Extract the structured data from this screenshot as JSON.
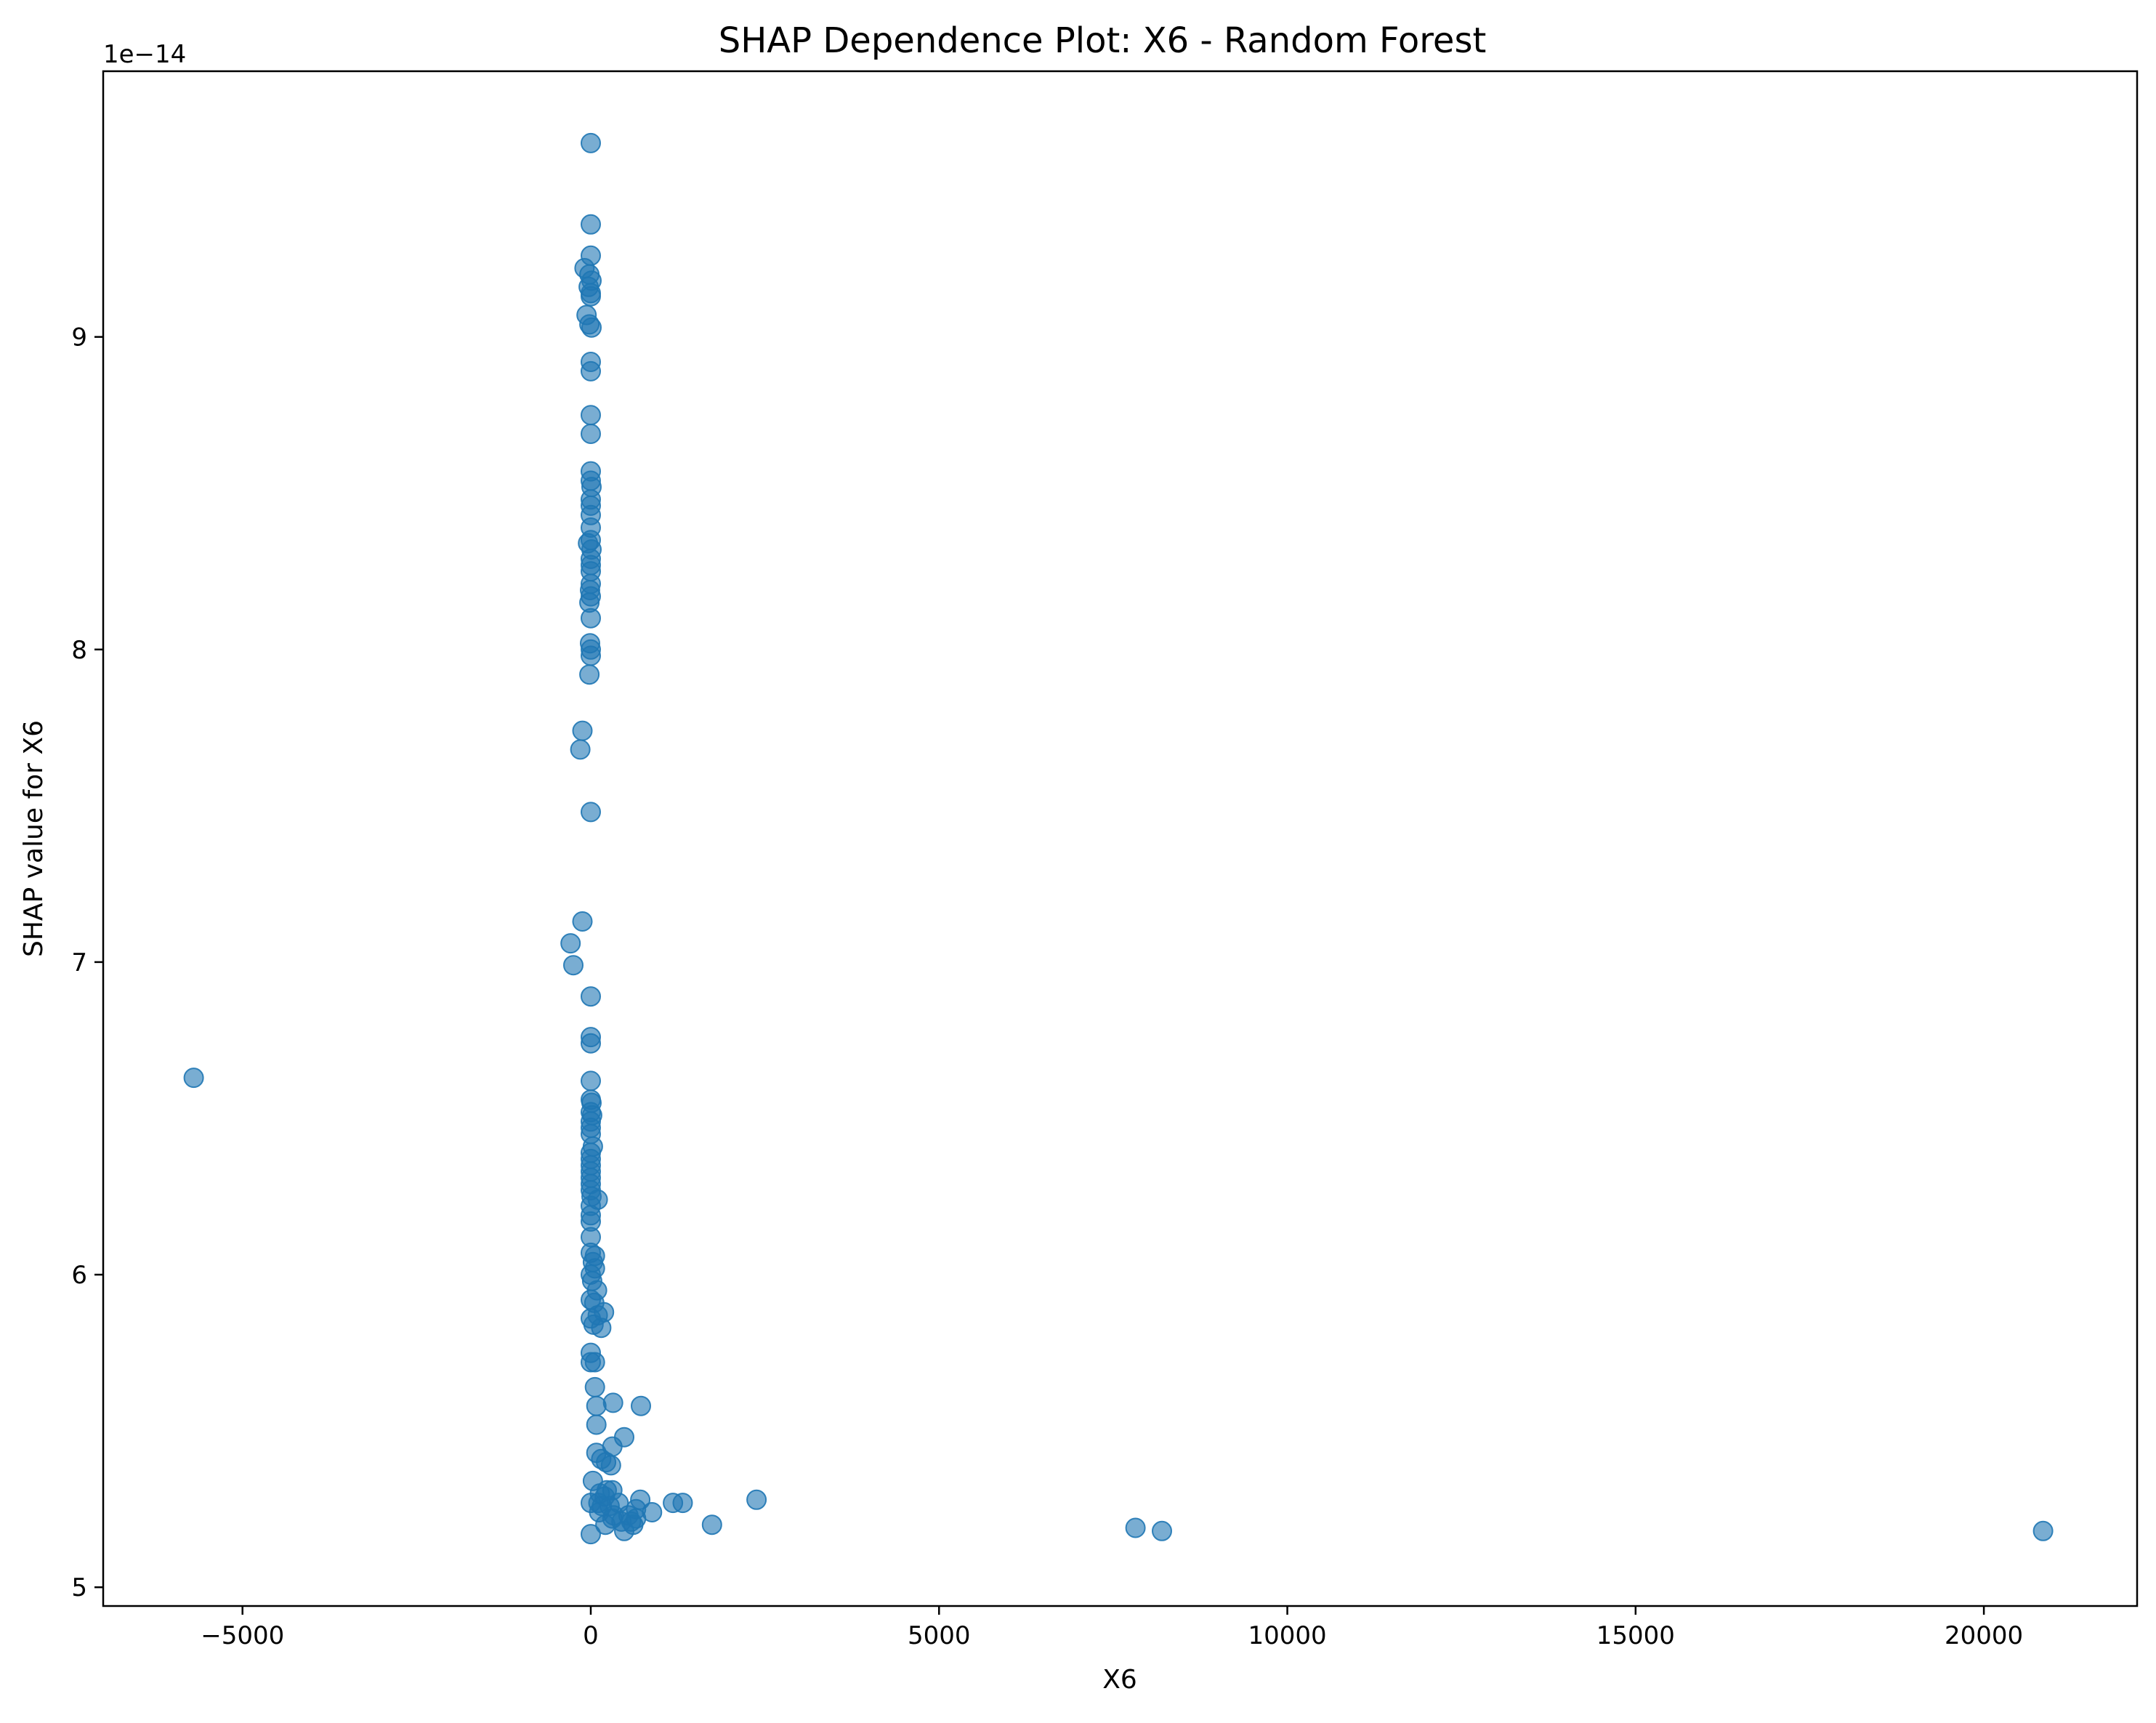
{
  "chart_data": {
    "type": "scatter",
    "title": "SHAP Dependence Plot: X6 - Random Forest",
    "xlabel": "X6",
    "ylabel": "SHAP value for X6",
    "y_offset_label": "1e−14",
    "xlim": [
      -7000,
      22200
    ],
    "ylim": [
      4.94,
      9.85
    ],
    "grid": false,
    "legend": "none",
    "marker_color": "#1f77b4",
    "marker_alpha": 0.6,
    "x_ticks": [
      {
        "value": -5000,
        "label": "−5000"
      },
      {
        "value": 0,
        "label": "0"
      },
      {
        "value": 5000,
        "label": "5000"
      },
      {
        "value": 10000,
        "label": "10000"
      },
      {
        "value": 15000,
        "label": "15000"
      },
      {
        "value": 20000,
        "label": "20000"
      }
    ],
    "y_ticks": [
      {
        "value": 5,
        "label": "5"
      },
      {
        "value": 6,
        "label": "6"
      },
      {
        "value": 7,
        "label": "7"
      },
      {
        "value": 8,
        "label": "8"
      },
      {
        "value": 9,
        "label": "9"
      }
    ],
    "points": [
      {
        "x": 0,
        "y": 9.62
      },
      {
        "x": 0,
        "y": 9.36
      },
      {
        "x": 0,
        "y": 9.26
      },
      {
        "x": -90,
        "y": 9.22
      },
      {
        "x": -20,
        "y": 9.2
      },
      {
        "x": 10,
        "y": 9.18
      },
      {
        "x": -30,
        "y": 9.16
      },
      {
        "x": 0,
        "y": 9.14
      },
      {
        "x": 0,
        "y": 9.13
      },
      {
        "x": -60,
        "y": 9.07
      },
      {
        "x": -20,
        "y": 9.04
      },
      {
        "x": 10,
        "y": 9.03
      },
      {
        "x": 0,
        "y": 8.92
      },
      {
        "x": 0,
        "y": 8.89
      },
      {
        "x": 0,
        "y": 8.75
      },
      {
        "x": 0,
        "y": 8.69
      },
      {
        "x": 0,
        "y": 8.57
      },
      {
        "x": 0,
        "y": 8.54
      },
      {
        "x": 10,
        "y": 8.52
      },
      {
        "x": 0,
        "y": 8.48
      },
      {
        "x": 0,
        "y": 8.46
      },
      {
        "x": 0,
        "y": 8.43
      },
      {
        "x": 0,
        "y": 8.39
      },
      {
        "x": 0,
        "y": 8.35
      },
      {
        "x": -40,
        "y": 8.34
      },
      {
        "x": 10,
        "y": 8.32
      },
      {
        "x": 0,
        "y": 8.29
      },
      {
        "x": 0,
        "y": 8.27
      },
      {
        "x": 0,
        "y": 8.25
      },
      {
        "x": 0,
        "y": 8.21
      },
      {
        "x": -10,
        "y": 8.19
      },
      {
        "x": 0,
        "y": 8.17
      },
      {
        "x": -20,
        "y": 8.15
      },
      {
        "x": 0,
        "y": 8.1
      },
      {
        "x": -10,
        "y": 8.02
      },
      {
        "x": 0,
        "y": 8.0
      },
      {
        "x": 0,
        "y": 7.98
      },
      {
        "x": -20,
        "y": 7.92
      },
      {
        "x": -120,
        "y": 7.74
      },
      {
        "x": -150,
        "y": 7.68
      },
      {
        "x": 0,
        "y": 7.48
      },
      {
        "x": -120,
        "y": 7.13
      },
      {
        "x": -290,
        "y": 7.06
      },
      {
        "x": -250,
        "y": 6.99
      },
      {
        "x": 0,
        "y": 6.89
      },
      {
        "x": 0,
        "y": 6.76
      },
      {
        "x": 0,
        "y": 6.74
      },
      {
        "x": 0,
        "y": 6.62
      },
      {
        "x": -5700,
        "y": 6.63
      },
      {
        "x": 0,
        "y": 6.56
      },
      {
        "x": 10,
        "y": 6.55
      },
      {
        "x": 0,
        "y": 6.52
      },
      {
        "x": 20,
        "y": 6.51
      },
      {
        "x": 0,
        "y": 6.49
      },
      {
        "x": 0,
        "y": 6.47
      },
      {
        "x": 0,
        "y": 6.45
      },
      {
        "x": 30,
        "y": 6.41
      },
      {
        "x": 0,
        "y": 6.39
      },
      {
        "x": 0,
        "y": 6.37
      },
      {
        "x": 0,
        "y": 6.35
      },
      {
        "x": 0,
        "y": 6.33
      },
      {
        "x": 0,
        "y": 6.31
      },
      {
        "x": 0,
        "y": 6.29
      },
      {
        "x": 0,
        "y": 6.27
      },
      {
        "x": 10,
        "y": 6.25
      },
      {
        "x": 100,
        "y": 6.24
      },
      {
        "x": 0,
        "y": 6.22
      },
      {
        "x": 0,
        "y": 6.19
      },
      {
        "x": 0,
        "y": 6.17
      },
      {
        "x": 0,
        "y": 6.12
      },
      {
        "x": 0,
        "y": 6.07
      },
      {
        "x": 60,
        "y": 6.06
      },
      {
        "x": 30,
        "y": 6.04
      },
      {
        "x": 60,
        "y": 6.02
      },
      {
        "x": 0,
        "y": 6.0
      },
      {
        "x": 20,
        "y": 5.98
      },
      {
        "x": 90,
        "y": 5.95
      },
      {
        "x": 0,
        "y": 5.92
      },
      {
        "x": 50,
        "y": 5.91
      },
      {
        "x": 190,
        "y": 5.88
      },
      {
        "x": 100,
        "y": 5.87
      },
      {
        "x": 0,
        "y": 5.86
      },
      {
        "x": 40,
        "y": 5.84
      },
      {
        "x": 150,
        "y": 5.83
      },
      {
        "x": 0,
        "y": 5.75
      },
      {
        "x": 0,
        "y": 5.72
      },
      {
        "x": 60,
        "y": 5.72
      },
      {
        "x": 60,
        "y": 5.64
      },
      {
        "x": 320,
        "y": 5.59
      },
      {
        "x": 720,
        "y": 5.58
      },
      {
        "x": 80,
        "y": 5.58
      },
      {
        "x": 80,
        "y": 5.52
      },
      {
        "x": 480,
        "y": 5.48
      },
      {
        "x": 310,
        "y": 5.45
      },
      {
        "x": 80,
        "y": 5.43
      },
      {
        "x": 150,
        "y": 5.41
      },
      {
        "x": 220,
        "y": 5.4
      },
      {
        "x": 290,
        "y": 5.39
      },
      {
        "x": 30,
        "y": 5.34
      },
      {
        "x": 230,
        "y": 5.31
      },
      {
        "x": 310,
        "y": 5.31
      },
      {
        "x": 130,
        "y": 5.3
      },
      {
        "x": 200,
        "y": 5.29
      },
      {
        "x": 2380,
        "y": 5.28
      },
      {
        "x": 710,
        "y": 5.28
      },
      {
        "x": 1180,
        "y": 5.27
      },
      {
        "x": 1320,
        "y": 5.27
      },
      {
        "x": 0,
        "y": 5.27
      },
      {
        "x": 110,
        "y": 5.27
      },
      {
        "x": 400,
        "y": 5.27
      },
      {
        "x": 160,
        "y": 5.26
      },
      {
        "x": 270,
        "y": 5.26
      },
      {
        "x": 650,
        "y": 5.25
      },
      {
        "x": 120,
        "y": 5.24
      },
      {
        "x": 880,
        "y": 5.24
      },
      {
        "x": 540,
        "y": 5.23
      },
      {
        "x": 330,
        "y": 5.23
      },
      {
        "x": 650,
        "y": 5.22
      },
      {
        "x": 310,
        "y": 5.22
      },
      {
        "x": 440,
        "y": 5.21
      },
      {
        "x": 580,
        "y": 5.21
      },
      {
        "x": 210,
        "y": 5.2
      },
      {
        "x": 610,
        "y": 5.2
      },
      {
        "x": 1740,
        "y": 5.2
      },
      {
        "x": 7820,
        "y": 5.19
      },
      {
        "x": 480,
        "y": 5.18
      },
      {
        "x": 8200,
        "y": 5.18
      },
      {
        "x": 20850,
        "y": 5.18
      },
      {
        "x": 0,
        "y": 5.17
      }
    ]
  }
}
